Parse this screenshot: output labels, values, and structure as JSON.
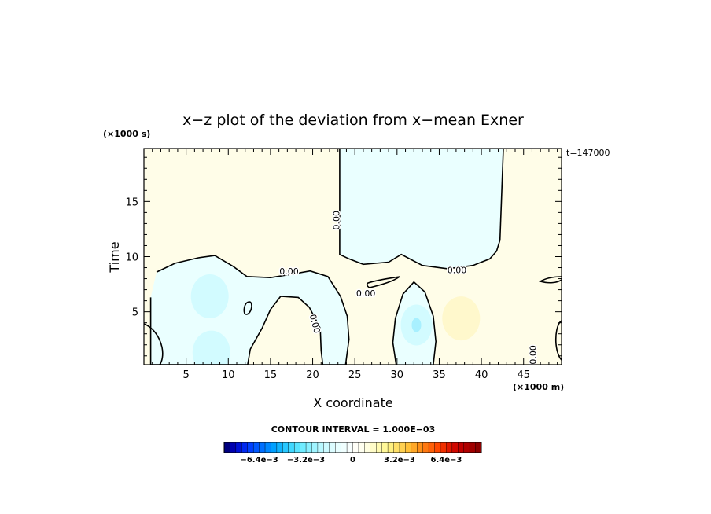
{
  "chart_data": {
    "type": "contour",
    "title": "x−z plot of the deviation from x−mean Exner",
    "xlabel": "X coordinate",
    "ylabel": "Time",
    "x_unit": "(×1000 m)",
    "y_unit": "(×1000 s)",
    "time_stamp": "t=147000",
    "xlim": [
      0,
      49.5
    ],
    "ylim": [
      0.2,
      19.8
    ],
    "x_ticks": [
      5,
      10,
      15,
      20,
      25,
      30,
      35,
      40,
      45
    ],
    "y_ticks": [
      5,
      10,
      15
    ],
    "contour_interval_text": "CONTOUR INTERVAL = 1.000E−03",
    "contour_labels": [
      {
        "text": "0.00",
        "x": 22.9,
        "y": 13.3,
        "angle": -90
      },
      {
        "text": "0.00",
        "x": 17.2,
        "y": 8.6,
        "angle": 0
      },
      {
        "text": "0.00",
        "x": 26.3,
        "y": 6.6,
        "angle": 0
      },
      {
        "text": "0.00",
        "x": 20.2,
        "y": 3.9,
        "angle": 75
      },
      {
        "text": "0.00",
        "x": 37.1,
        "y": 8.7,
        "angle": 0
      },
      {
        "text": "0.00",
        "x": 46.2,
        "y": 1.1,
        "angle": -90
      }
    ],
    "negative_regions": [
      {
        "name": "upper-right",
        "polygon": [
          [
            23.2,
            19.8
          ],
          [
            23.2,
            10.2
          ],
          [
            24.3,
            9.8
          ],
          [
            26,
            9.3
          ],
          [
            29,
            9.5
          ],
          [
            30.5,
            10.2
          ],
          [
            33,
            9.2
          ],
          [
            36,
            8.9
          ],
          [
            39,
            9.2
          ],
          [
            41,
            9.8
          ],
          [
            41.8,
            10.5
          ],
          [
            42.2,
            11.5
          ],
          [
            42.6,
            19.8
          ]
        ]
      },
      {
        "name": "lower-left",
        "polygon": [
          [
            1.5,
            8.6
          ],
          [
            3.7,
            9.4
          ],
          [
            6.5,
            9.9
          ],
          [
            8.4,
            10.1
          ],
          [
            10.6,
            9.1
          ],
          [
            12.2,
            8.2
          ],
          [
            15,
            8.1
          ],
          [
            17.5,
            8.4
          ],
          [
            19.7,
            8.7
          ],
          [
            21.8,
            8.2
          ],
          [
            23.3,
            6.4
          ],
          [
            24.1,
            4.6
          ],
          [
            24.3,
            2.5
          ],
          [
            23.9,
            0.2
          ],
          [
            21.2,
            0.2
          ],
          [
            21,
            1.5
          ],
          [
            20.9,
            3.5
          ],
          [
            19.6,
            5.4
          ],
          [
            18.3,
            6.3
          ],
          [
            16.2,
            6.4
          ],
          [
            15,
            5.2
          ],
          [
            14,
            3.5
          ],
          [
            12.6,
            1.6
          ],
          [
            12.3,
            0.2
          ],
          [
            0.8,
            0.2
          ],
          [
            0.8,
            6.3
          ]
        ]
      },
      {
        "name": "center-bottom",
        "polygon": [
          [
            29.9,
            0.2
          ],
          [
            29.5,
            2.2
          ],
          [
            29.8,
            4.4
          ],
          [
            30.7,
            6.6
          ],
          [
            32,
            7.7
          ],
          [
            33.3,
            6.8
          ],
          [
            34.3,
            4.6
          ],
          [
            34.6,
            2.3
          ],
          [
            34.3,
            0.2
          ]
        ]
      }
    ],
    "extrema": [
      {
        "name": "neg-min-left",
        "x": 7.8,
        "y": 6.4,
        "value": -0.0012
      },
      {
        "name": "neg-min-bottom-left",
        "x": 8,
        "y": 1.3,
        "value": -0.0009
      },
      {
        "name": "neg-min-center",
        "x": 32.3,
        "y": 3.8,
        "value": -0.0017
      },
      {
        "name": "pos-max-right",
        "x": 37.6,
        "y": 4.4,
        "value": 0.0012
      }
    ],
    "colorbar": {
      "min": -0.0088,
      "max": 0.0088,
      "n_levels": 44,
      "tick_labels": [
        "−6.4e−3",
        "−3.2e−3",
        "0",
        "3.2e−3",
        "6.4e−3"
      ],
      "tick_values": [
        -0.0064,
        -0.0032,
        0,
        0.0032,
        0.0064
      ],
      "colors": [
        "#00007f",
        "#0000b0",
        "#0010d8",
        "#0028f0",
        "#0040ff",
        "#0058ff",
        "#0070ff",
        "#0088ff",
        "#00a0ff",
        "#10b4ff",
        "#28c8ff",
        "#40d8ff",
        "#58e4ff",
        "#70ecff",
        "#88f0ff",
        "#a0f4ff",
        "#b8f8ff",
        "#ccfaff",
        "#dcfcff",
        "#e8feff",
        "#f0ffff",
        "#f8ffff",
        "#fffff8",
        "#fffff0",
        "#fffee0",
        "#fffcc8",
        "#fffab0",
        "#fff898",
        "#fff080",
        "#ffe068",
        "#ffd050",
        "#ffc038",
        "#ffa828",
        "#ff9018",
        "#ff7810",
        "#ff6008",
        "#ff4800",
        "#f03000",
        "#e01800",
        "#d00800",
        "#c00000",
        "#b00000",
        "#a00000",
        "#8c0000"
      ]
    },
    "fill_colors": {
      "background_positive": "#fffde8",
      "negative_weak": "#eaffff",
      "negative_mid": "#ccfaff",
      "negative_strong": "#a8f0ff",
      "positive_mid": "#fff6c4"
    }
  }
}
